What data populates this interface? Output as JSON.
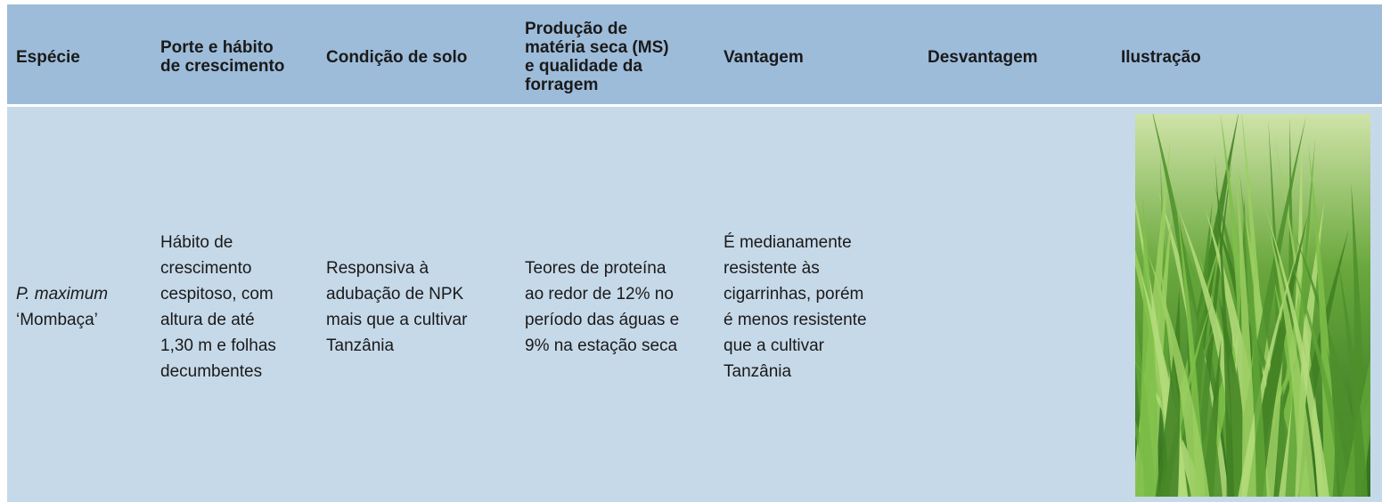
{
  "table": {
    "header": [
      [
        "Espécie"
      ],
      [
        "Porte e hábito",
        "de crescimento"
      ],
      [
        "Condição de solo"
      ],
      [
        "Produção de",
        "matéria seca (MS)",
        "e qualidade da",
        "forragem"
      ],
      [
        "Vantagem"
      ],
      [
        "Desvantagem"
      ],
      [
        "Ilustração"
      ]
    ],
    "rows": [
      [
        [
          "P. maximum",
          "‘Mombaça’"
        ],
        [
          "Hábito de",
          "crescimento",
          "cespitoso, com",
          "altura de até",
          "1,30 m e folhas",
          "decumbentes"
        ],
        [
          "Responsiva à",
          "adubação de NPK",
          "mais que a cultivar",
          "Tanzânia"
        ],
        [
          "Teores de proteína",
          "ao redor de 12% no",
          "período das águas e",
          "9% na estação seca"
        ],
        [
          "É medianamente",
          "resistente às",
          "cigarrinhas, porém",
          "é menos resistente",
          "que a cultivar",
          "Tanzânia"
        ]
      ]
    ]
  }
}
